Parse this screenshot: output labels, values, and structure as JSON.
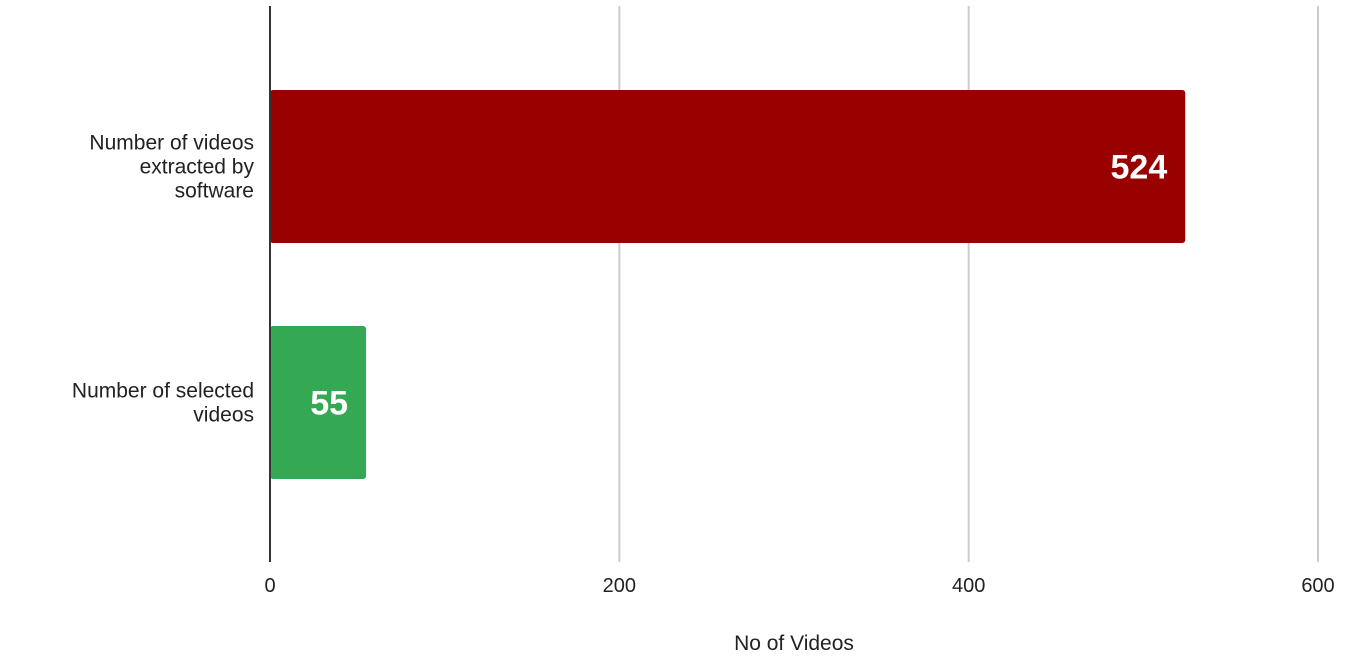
{
  "chart_data": {
    "type": "bar",
    "orientation": "horizontal",
    "title": "",
    "xlabel": "No of Videos",
    "ylabel": "",
    "xlim": [
      0,
      600
    ],
    "x_ticks": [
      0,
      200,
      400,
      600
    ],
    "grid": true,
    "legend": "none",
    "categories": [
      [
        "Number of videos",
        "extracted by",
        "software"
      ],
      [
        "Number of selected",
        "videos"
      ]
    ],
    "values": [
      524,
      55
    ],
    "data_labels": [
      "524",
      "55"
    ],
    "colors": [
      "#990000",
      "#34a853"
    ],
    "label_color": "#ffffff",
    "grid_color": "#cccccc",
    "axis_color": "#333333"
  }
}
